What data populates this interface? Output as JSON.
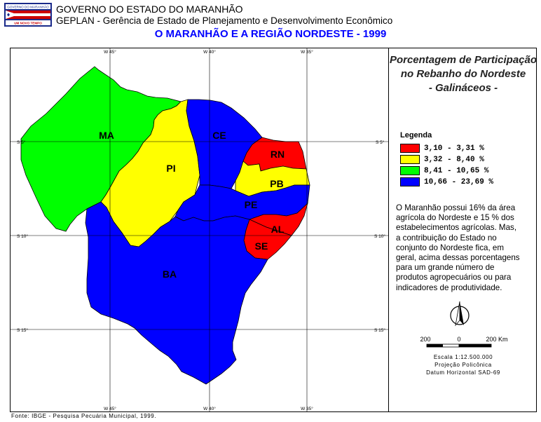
{
  "header": {
    "line1": "GOVERNO DO ESTADO DO MARANHÃO",
    "line2": "GEPLAN - Gerência de Estado de Planejamento e Desenvolvimento Econômico",
    "title": "O MARANHÃO E A REGIÃO NORDESTE - 1999",
    "logo_top_text": "GOVERNO DO MARANHÃO",
    "logo_bottom_text": "UM NOVO TEMPO"
  },
  "map": {
    "grid_labels": {
      "top": [
        "W 45°",
        "W 40°",
        "W 35°"
      ],
      "bottom": [
        "W 45°",
        "W 40°",
        "W 35°"
      ],
      "left": [
        "S 5°",
        "S 10°",
        "S 15°"
      ],
      "right": [
        "S 5°",
        "S 10°",
        "S 15°"
      ]
    },
    "states": [
      {
        "abbr": "MA",
        "class": 3,
        "color": "#00ff00"
      },
      {
        "abbr": "PI",
        "class": 2,
        "color": "#ffff00"
      },
      {
        "abbr": "CE",
        "class": 4,
        "color": "#0000ff"
      },
      {
        "abbr": "RN",
        "class": 1,
        "color": "#ff0000"
      },
      {
        "abbr": "PB",
        "class": 2,
        "color": "#ffff00"
      },
      {
        "abbr": "PE",
        "class": 4,
        "color": "#0000ff"
      },
      {
        "abbr": "AL",
        "class": 1,
        "color": "#ff0000"
      },
      {
        "abbr": "SE",
        "class": 1,
        "color": "#ff0000"
      },
      {
        "abbr": "BA",
        "class": 4,
        "color": "#0000ff"
      }
    ]
  },
  "panel": {
    "title_lines": [
      "Porcentagem de Participação",
      "no Rebanho do Nordeste",
      "- Galináceos -"
    ],
    "legend_title": "Legenda",
    "legend": [
      {
        "label": "3,10 - 3,31 %",
        "color": "#ff0000"
      },
      {
        "label": "3,32 - 8,40 %",
        "color": "#ffff00"
      },
      {
        "label": "8,41 - 10,65 %",
        "color": "#00ff00"
      },
      {
        "label": "10,66 - 23,69 %",
        "color": "#0000ff"
      }
    ],
    "note_lines": [
      "O Maranhão possui 16% da área",
      "agrícola do Nordeste e 15 % dos",
      "estabelecimentos agrícolas. Mas,",
      "a contribuição do Estado no",
      "conjunto do Nordeste fica, em",
      "geral, acima dessas porcentagens",
      "para um grande número de",
      "produtos agropecuários ou para",
      "indicadores de produtividade."
    ],
    "scale_labels": [
      "200",
      "0",
      "200 Km"
    ],
    "scale_text": "Escala 1:12.500.000",
    "projection": "Projeção Policônica",
    "datum": "Datum Horizontal SAD-69"
  },
  "source": "Fonte: IBGE - Pesquisa Pecuária Municipal, 1999."
}
